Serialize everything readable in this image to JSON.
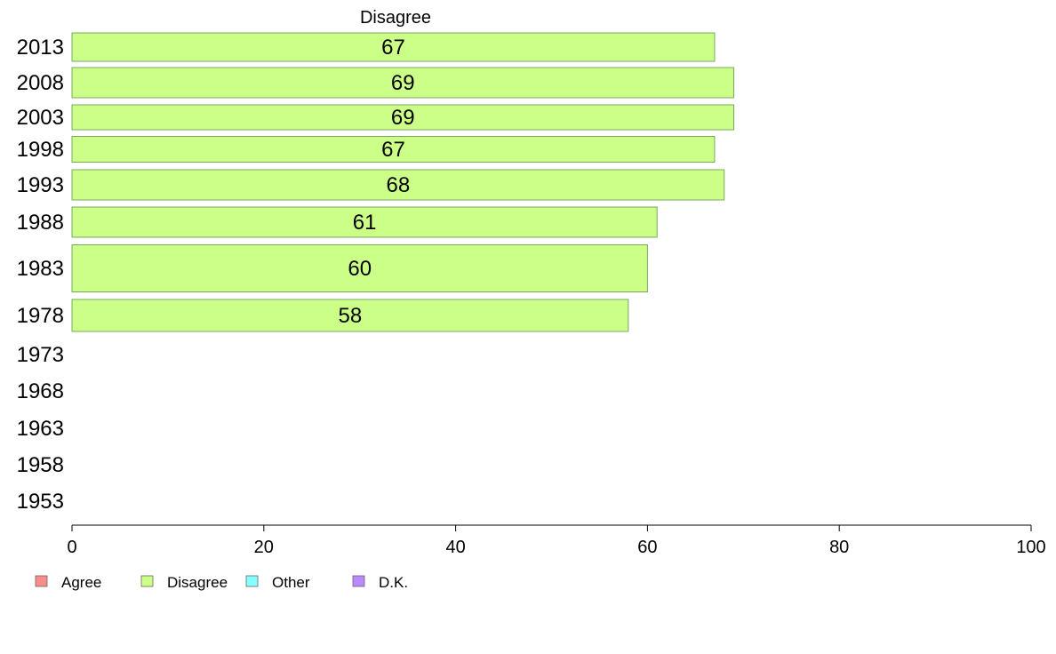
{
  "chart_data": {
    "type": "bar",
    "orientation": "horizontal",
    "title": "Disagree",
    "categories": [
      "2013",
      "2008",
      "2003",
      "1998",
      "1993",
      "1988",
      "1983",
      "1978",
      "1973",
      "1968",
      "1963",
      "1958",
      "1953"
    ],
    "series": [
      {
        "name": "Disagree",
        "values": [
          67,
          69,
          69,
          67,
          68,
          61,
          60,
          58,
          null,
          null,
          null,
          null,
          null
        ]
      }
    ],
    "data_labels": [
      "67",
      "69",
      "69",
      "67",
      "68",
      "61",
      "60",
      "58",
      "",
      "",
      "",
      "",
      ""
    ],
    "xlim": [
      0,
      100
    ],
    "x_ticks": [
      0,
      20,
      40,
      60,
      80,
      100
    ],
    "xlabel": "",
    "ylabel": "",
    "grid": false,
    "legend": {
      "placement": "bottom-left",
      "entries": [
        {
          "name": "Agree",
          "color": "#f88e8a"
        },
        {
          "name": "Disagree",
          "color": "#ccff88"
        },
        {
          "name": "Other",
          "color": "#88ffff"
        },
        {
          "name": "D.K.",
          "color": "#bb88ff"
        }
      ]
    },
    "bar_color": "#ccff88",
    "bar_edge_color": "#7aa860"
  }
}
